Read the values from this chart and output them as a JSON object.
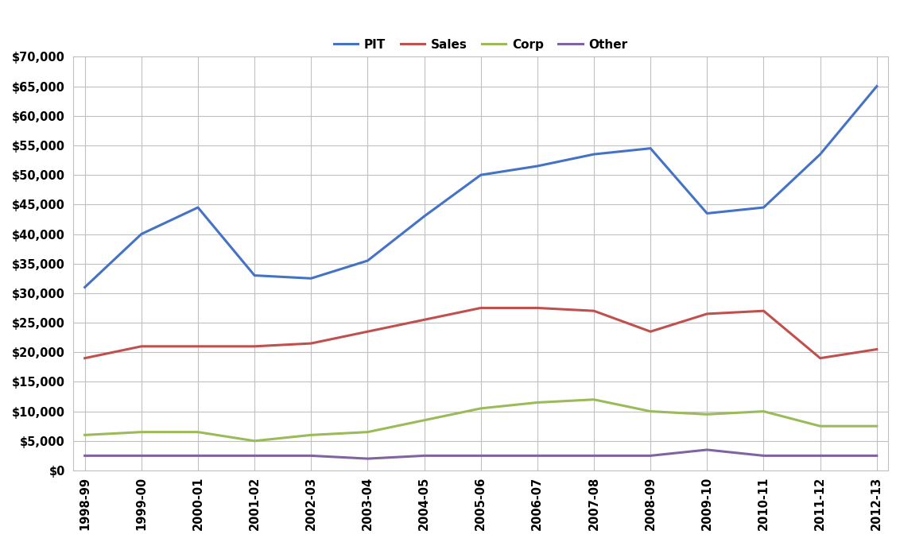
{
  "years": [
    "1998-99",
    "1999-00",
    "2000-01",
    "2001-02",
    "2002-03",
    "2003-04",
    "2004-05",
    "2005-06",
    "2006-07",
    "2007-08",
    "2008-09",
    "2009-10",
    "2010-11",
    "2011-12",
    "2012-13"
  ],
  "PIT": [
    31000,
    40000,
    44500,
    33000,
    32500,
    35500,
    43000,
    50000,
    51500,
    53500,
    54500,
    43500,
    44500,
    53500,
    65000
  ],
  "Sales": [
    19000,
    21000,
    21000,
    21000,
    21500,
    23500,
    25500,
    27500,
    27500,
    27000,
    23500,
    26500,
    27000,
    19000,
    20500
  ],
  "Corp": [
    6000,
    6500,
    6500,
    5000,
    6000,
    6500,
    8500,
    10500,
    11500,
    12000,
    10000,
    9500,
    10000,
    7500,
    7500
  ],
  "Other": [
    2500,
    2500,
    2500,
    2500,
    2500,
    2000,
    2500,
    2500,
    2500,
    2500,
    2500,
    3500,
    2500,
    2500,
    2500
  ],
  "colors": {
    "PIT": "#4472C4",
    "Sales": "#C0504D",
    "Corp": "#9BBB59",
    "Other": "#8064A2"
  },
  "ylim": [
    0,
    70000
  ],
  "yticks": [
    0,
    5000,
    10000,
    15000,
    20000,
    25000,
    30000,
    35000,
    40000,
    45000,
    50000,
    55000,
    60000,
    65000,
    70000
  ],
  "plot_bg": "#ffffff",
  "fig_bg": "#ffffff",
  "grid_color": "#c0c0c0",
  "legend_entries": [
    "PIT",
    "Sales",
    "Corp",
    "Other"
  ],
  "linewidth": 2.2
}
